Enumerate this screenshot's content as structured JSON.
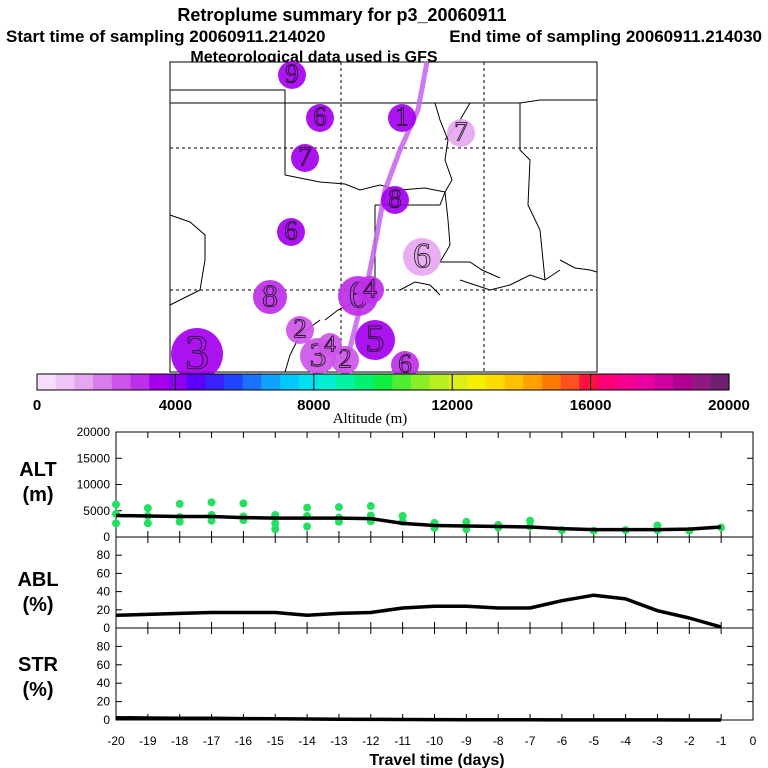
{
  "header": {
    "title": "Retroplume summary for p3_20060911",
    "start_text": "Start time of sampling 20060911.214020",
    "end_text": "End time of sampling 20060911.214030",
    "met_text": "Meteorological data used is GFS"
  },
  "colorbar": {
    "ticks": [
      0,
      4000,
      8000,
      12000,
      16000,
      20000
    ],
    "label": "Altitude (m)",
    "colors": [
      "#f6defa",
      "#efc4f6",
      "#e6a6f1",
      "#d97cec",
      "#ce55ea",
      "#bf2fea",
      "#a400ef",
      "#8e00f2",
      "#5a00ff",
      "#3a22ff",
      "#2244ff",
      "#1a73ff",
      "#0fa3ff",
      "#00c8ff",
      "#00e0f0",
      "#00efd0",
      "#00f5a0",
      "#00f270",
      "#10ef40",
      "#50ee30",
      "#8cee28",
      "#b6ee20",
      "#dcee18",
      "#f6f000",
      "#ffdc00",
      "#ffc000",
      "#ffa000",
      "#ff7a00",
      "#ff5020",
      "#ff1040",
      "#ff0078",
      "#f50090",
      "#e800a0",
      "#d000a0",
      "#b00090",
      "#901880",
      "#702070"
    ]
  },
  "map": {
    "markers": [
      {
        "day": "9",
        "altitude": 3500
      },
      {
        "day": "6",
        "altitude": 3600
      },
      {
        "day": "7",
        "altitude": 3700
      },
      {
        "day": "6",
        "altitude": 3600
      },
      {
        "day": "1",
        "altitude": 3500
      },
      {
        "day": "8",
        "altitude": 3300
      },
      {
        "day": "7",
        "altitude": 1600
      },
      {
        "day": "6",
        "altitude": 1600
      },
      {
        "day": "8",
        "altitude": 3100
      },
      {
        "day": "3",
        "altitude": 3600
      },
      {
        "day": "6",
        "altitude": 3000
      },
      {
        "day": "4",
        "altitude": 3200
      },
      {
        "day": "2",
        "altitude": 2700
      },
      {
        "day": "5",
        "altitude": 3300
      },
      {
        "day": "3",
        "altitude": 2600
      },
      {
        "day": "6",
        "altitude": 2800
      },
      {
        "day": "2",
        "altitude": 2400
      },
      {
        "day": "4",
        "altitude": 2500
      }
    ]
  },
  "chart_data": [
    {
      "type": "line",
      "panel": "ALT",
      "ylabel": "ALT (m)",
      "ylim": [
        0,
        20000
      ],
      "yticks": [
        0,
        5000,
        10000,
        15000,
        20000
      ],
      "x": [
        -20,
        -19,
        -18,
        -17,
        -16,
        -15,
        -14,
        -13,
        -12,
        -11,
        -10,
        -9,
        -8,
        -7,
        -6,
        -5,
        -4,
        -3,
        -2,
        -1
      ],
      "values": [
        4100,
        4000,
        3900,
        3900,
        3700,
        3600,
        3600,
        3600,
        3500,
        2600,
        2200,
        2100,
        2000,
        1900,
        1600,
        1400,
        1400,
        1400,
        1500,
        1900
      ],
      "spread_color": "#22e060",
      "spread": [
        [
          -20,
          6200
        ],
        [
          -20,
          4400
        ],
        [
          -20,
          2600
        ],
        [
          -19,
          5500
        ],
        [
          -19,
          4000
        ],
        [
          -19,
          2600
        ],
        [
          -18,
          6300
        ],
        [
          -18,
          3800
        ],
        [
          -18,
          2900
        ],
        [
          -17,
          6600
        ],
        [
          -17,
          4200
        ],
        [
          -17,
          3100
        ],
        [
          -16,
          6400
        ],
        [
          -16,
          3900
        ],
        [
          -16,
          3200
        ],
        [
          -15,
          4200
        ],
        [
          -15,
          2600
        ],
        [
          -15,
          1500
        ],
        [
          -14,
          5600
        ],
        [
          -14,
          4000
        ],
        [
          -14,
          2000
        ],
        [
          -13,
          5700
        ],
        [
          -13,
          3700
        ],
        [
          -13,
          2900
        ],
        [
          -12,
          5900
        ],
        [
          -12,
          4100
        ],
        [
          -12,
          3000
        ],
        [
          -11,
          4000
        ],
        [
          -11,
          2900
        ],
        [
          -10,
          2700
        ],
        [
          -10,
          1700
        ],
        [
          -9,
          2900
        ],
        [
          -9,
          1500
        ],
        [
          -8,
          2300
        ],
        [
          -8,
          1800
        ],
        [
          -7,
          3100
        ],
        [
          -7,
          2000
        ],
        [
          -6,
          1300
        ],
        [
          -5,
          1200
        ],
        [
          -4,
          1300
        ],
        [
          -3,
          2200
        ],
        [
          -3,
          1300
        ],
        [
          -2,
          1200
        ],
        [
          -1,
          1800
        ]
      ]
    },
    {
      "type": "line",
      "panel": "ABL",
      "ylabel": "ABL (%)",
      "ylim": [
        0,
        100
      ],
      "yticks": [
        0,
        20,
        40,
        60,
        80
      ],
      "x": [
        -20,
        -19,
        -18,
        -17,
        -16,
        -15,
        -14,
        -13,
        -12,
        -11,
        -10,
        -9,
        -8,
        -7,
        -6,
        -5,
        -4,
        -3,
        -2,
        -1
      ],
      "values": [
        14,
        15,
        16,
        17,
        17,
        17,
        14,
        16,
        17,
        22,
        24,
        24,
        22,
        22,
        30,
        36,
        32,
        19,
        11,
        1
      ]
    },
    {
      "type": "line",
      "panel": "STR",
      "ylabel": "STR (%)",
      "ylim": [
        0,
        100
      ],
      "yticks": [
        0,
        20,
        40,
        60,
        80
      ],
      "x": [
        -20,
        -19,
        -18,
        -17,
        -16,
        -15,
        -14,
        -13,
        -12,
        -11,
        -10,
        -9,
        -8,
        -7,
        -6,
        -5,
        -4,
        -3,
        -2,
        -1
      ],
      "values": [
        2.5,
        2.2,
        2,
        1.8,
        1.5,
        1.3,
        1.1,
        0.9,
        0.7,
        0.5,
        0.4,
        0.3,
        0.2,
        0.2,
        0.1,
        0.1,
        0.1,
        0.1,
        0,
        0
      ]
    }
  ],
  "xaxis": {
    "ticks": [
      -20,
      -19,
      -18,
      -17,
      -16,
      -15,
      -14,
      -13,
      -12,
      -11,
      -10,
      -9,
      -8,
      -7,
      -6,
      -5,
      -4,
      -3,
      -2,
      -1,
      0
    ],
    "label": "Travel time (days)"
  }
}
